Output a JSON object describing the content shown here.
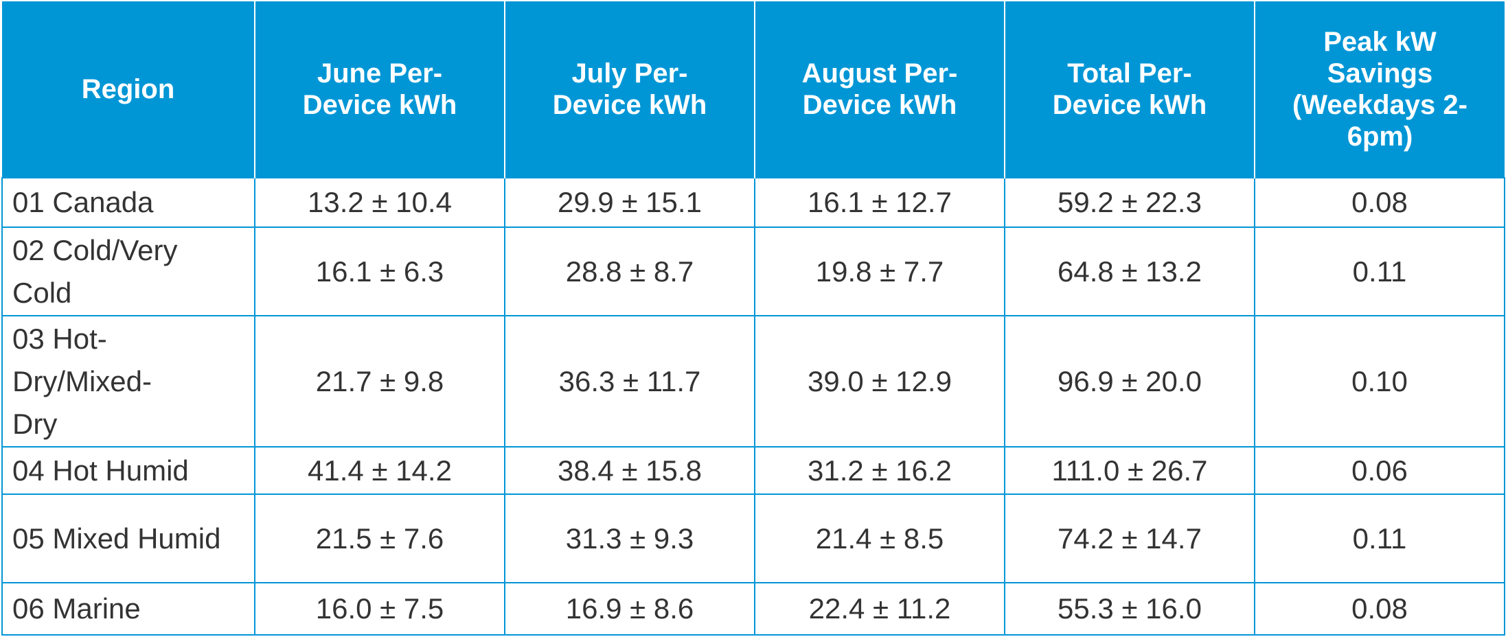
{
  "table": {
    "columns": [
      "Region",
      "June Per-Device kWh",
      "July Per-Device kWh",
      "August Per-Device kWh",
      "Total Per-Device kWh",
      "Peak kW Savings (Weekdays 2-6pm)"
    ],
    "rows": [
      [
        "01 Canada",
        "13.2 ± 10.4",
        "29.9 ± 15.1",
        "16.1 ± 12.7",
        "59.2 ± 22.3",
        "0.08"
      ],
      [
        "02 Cold/Very Cold",
        "16.1 ± 6.3",
        "28.8 ± 8.7",
        "19.8 ± 7.7",
        "64.8 ± 13.2",
        "0.11"
      ],
      [
        "03 Hot-Dry/Mixed-Dry",
        "21.7 ± 9.8",
        "36.3 ± 11.7",
        "39.0 ± 12.9",
        "96.9 ± 20.0",
        "0.10"
      ],
      [
        "04 Hot Humid",
        "41.4 ± 14.2",
        "38.4 ± 15.8",
        "31.2 ± 16.2",
        "111.0 ± 26.7",
        "0.06"
      ],
      [
        "05 Mixed Humid",
        "21.5 ± 7.6",
        "31.3 ± 9.3",
        "21.4 ± 8.5",
        "74.2 ± 14.7",
        "0.11"
      ],
      [
        "06 Marine",
        "16.0 ± 7.5",
        "16.9 ± 8.6",
        "22.4 ± 11.2",
        "55.3 ± 16.0",
        "0.08"
      ]
    ]
  }
}
